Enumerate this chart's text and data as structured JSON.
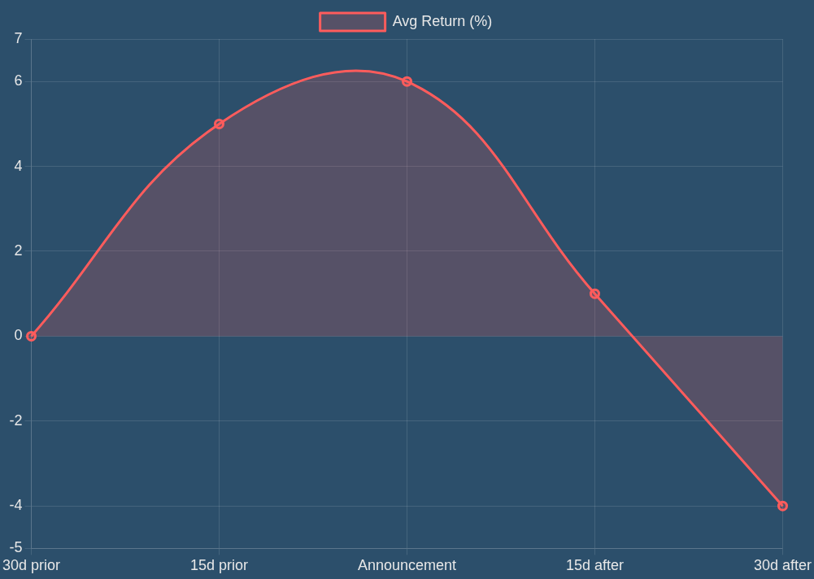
{
  "chart_data": {
    "type": "area",
    "categories": [
      "30d prior",
      "15d prior",
      "Announcement",
      "15d after",
      "30d after"
    ],
    "series": [
      {
        "name": "Avg Return (%)",
        "color": "#ff5c5c",
        "values": [
          0,
          5,
          6,
          1,
          -4
        ]
      }
    ],
    "ylim": [
      -5,
      7
    ],
    "yticks": [
      -5,
      -4,
      -2,
      0,
      2,
      4,
      6,
      7
    ],
    "grid": true,
    "legend": "top",
    "marker": "circle",
    "line_style": "solid"
  }
}
